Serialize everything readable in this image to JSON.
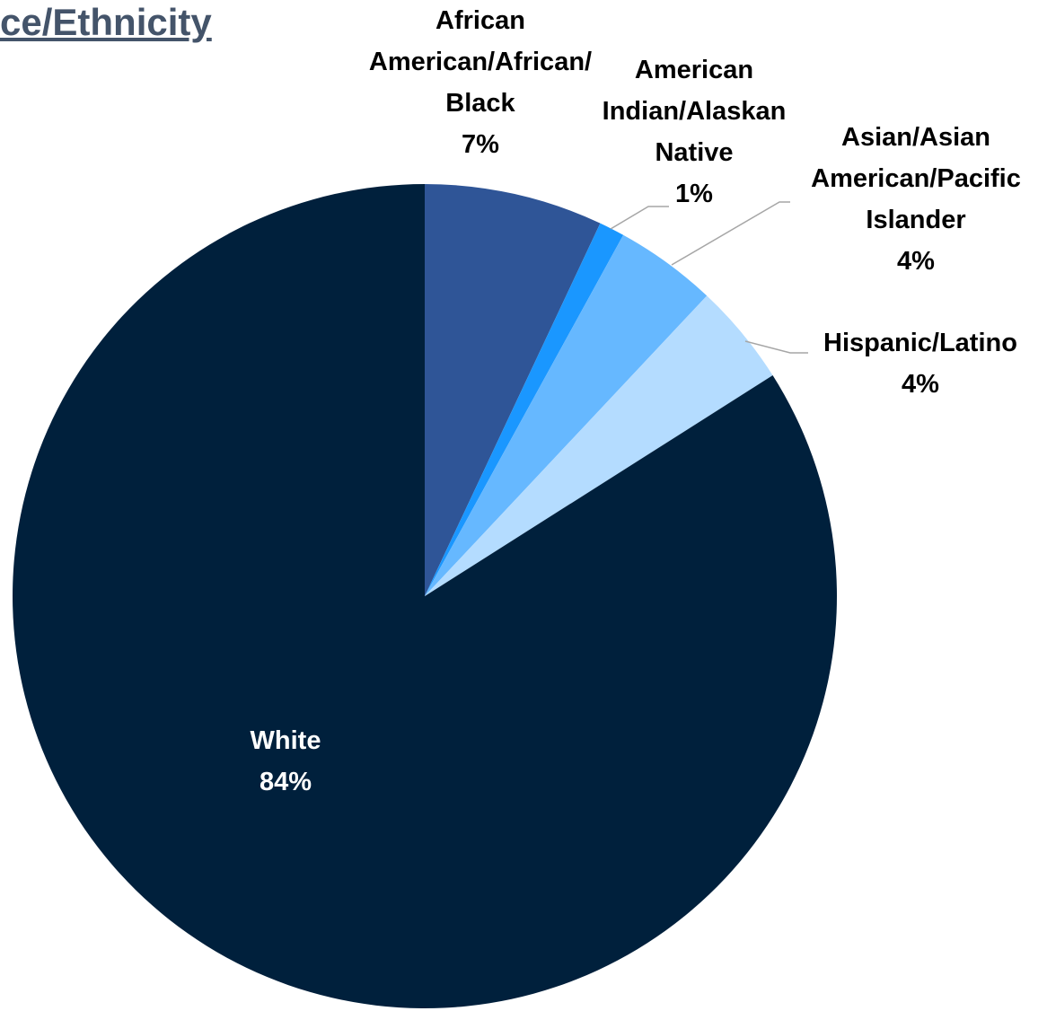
{
  "chart_data": {
    "type": "pie",
    "title": "ce/Ethnicity",
    "categories": [
      "African American/African/ Black",
      "American Indian/Alaskan Native",
      "Asian/Asian American/Pacific Islander",
      "Hispanic/Latino",
      "White"
    ],
    "values": [
      7,
      1,
      4,
      4,
      84
    ],
    "value_labels": [
      "7%",
      "1%",
      "4%",
      "4%",
      "84%"
    ],
    "colors": [
      "#2f5597",
      "#1a97ff",
      "#66b8ff",
      "#b4dcff",
      "#00203c"
    ]
  }
}
